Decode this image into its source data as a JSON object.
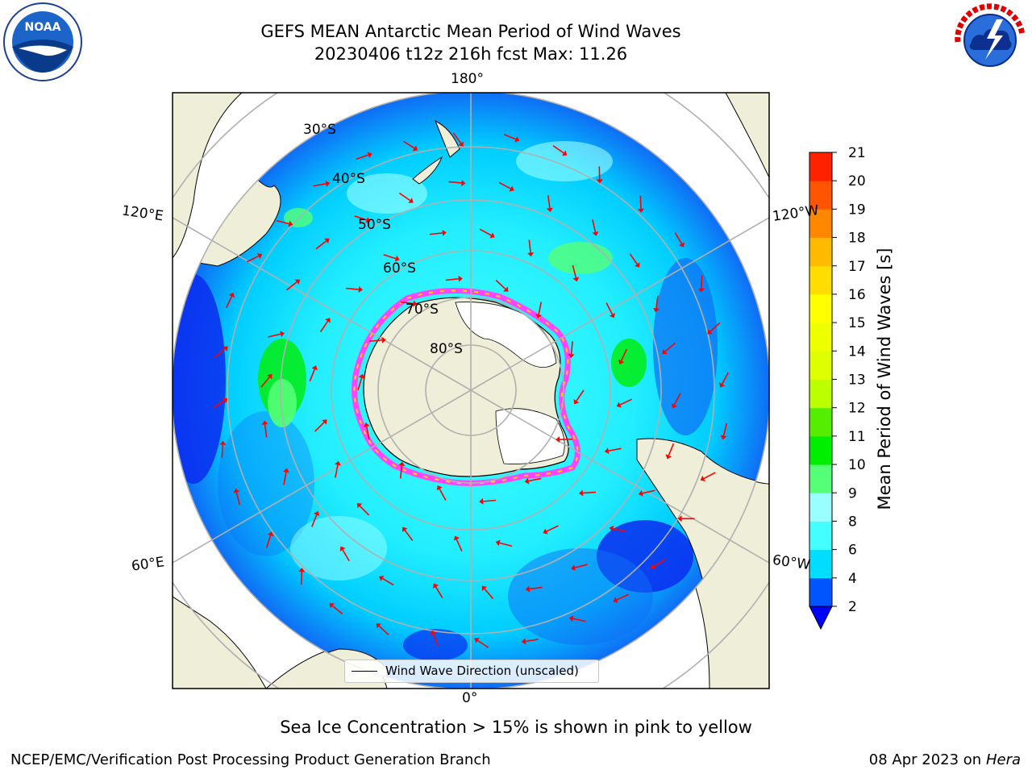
{
  "title": {
    "line1": "GEFS MEAN Antarctic Mean Period of Wind Waves",
    "line2": "20230406 t12z 216h fcst   Max: 11.26"
  },
  "logos": {
    "left": "noaa-logo",
    "left_text": "NOAA",
    "right": "national-weather-service-logo",
    "right_text": "NATIONAL WEATHER SERVICE"
  },
  "map": {
    "projection": "south-polar-stereographic",
    "longitude_labels": {
      "top": "180°",
      "upper_left": "120°E",
      "upper_right": "120°W",
      "lower_left": "60°E",
      "lower_right": "60°W",
      "bottom": "0°"
    },
    "latitude_labels": [
      "30°S",
      "40°S",
      "50°S",
      "60°S",
      "70°S",
      "80°S"
    ],
    "colors": {
      "land": "#efeed9",
      "ice_sheet": "#ffffff",
      "sea_ice_edge": "#ff44ff",
      "arrows": "#ff0000",
      "gridlines": "#b0b0b0"
    }
  },
  "legend": {
    "label": "Wind Wave Direction (unscaled)"
  },
  "colorbar": {
    "label": "Mean Period of Wind Waves [s]",
    "ticks": [
      "2",
      "4",
      "6",
      "8",
      "9",
      "10",
      "11",
      "12",
      "13",
      "14",
      "15",
      "16",
      "17",
      "18",
      "19",
      "20",
      "21"
    ],
    "colors": [
      "#0055ff",
      "#00ddff",
      "#44ffff",
      "#99ffff",
      "#55ff77",
      "#00ee00",
      "#55ee00",
      "#bbff00",
      "#ddff00",
      "#eeff00",
      "#ffff00",
      "#ffdd00",
      "#ffbb00",
      "#ff8800",
      "#ff5500",
      "#ff2200"
    ],
    "extend_min_color": "#0000ff"
  },
  "caption": "Sea Ice Concentration > 15% is shown in pink to yellow",
  "footer": {
    "left": "NCEP/EMC/Verification Post Processing Product Generation Branch",
    "right_date": "08 Apr 2023 on ",
    "right_host": "Hera"
  }
}
